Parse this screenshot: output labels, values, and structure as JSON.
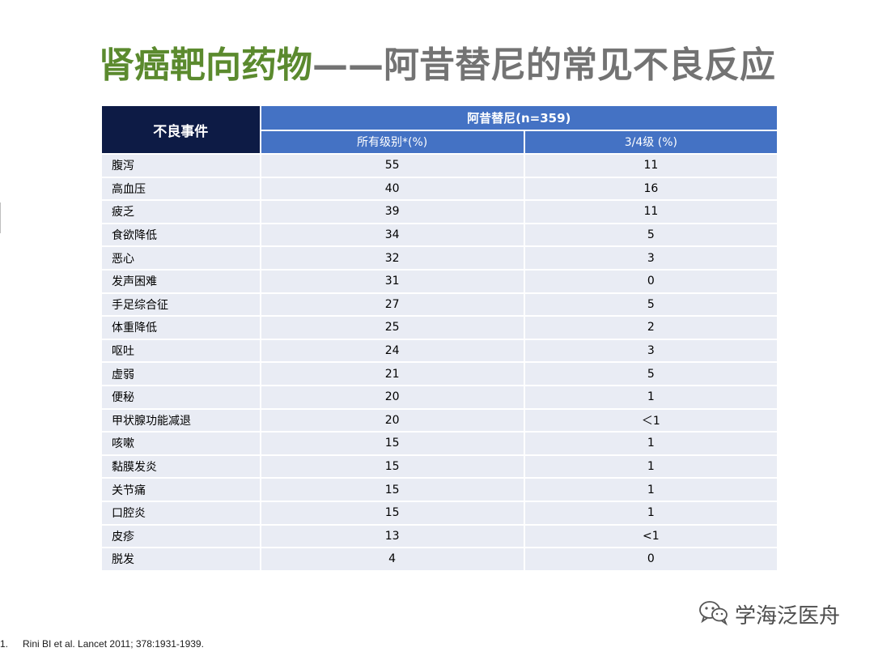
{
  "title": {
    "part1": "肾癌靶向药物",
    "part2": "——阿昔替尼的常见不良反应"
  },
  "table": {
    "header_ae": "不良事件",
    "header_drug": "阿昔替尼(n=359)",
    "header_all": "所有级别*(%)",
    "header_g34": "3/4级 (%)",
    "rows": [
      {
        "event": "腹泻",
        "all": "55",
        "g34": "11"
      },
      {
        "event": "高血压",
        "all": "40",
        "g34": "16"
      },
      {
        "event": "疲乏",
        "all": "39",
        "g34": "11"
      },
      {
        "event": "食欲降低",
        "all": "34",
        "g34": "5"
      },
      {
        "event": "恶心",
        "all": "32",
        "g34": "3"
      },
      {
        "event": "发声困难",
        "all": "31",
        "g34": "0"
      },
      {
        "event": "手足综合征",
        "all": "27",
        "g34": "5"
      },
      {
        "event": "体重降低",
        "all": "25",
        "g34": "2"
      },
      {
        "event": "呕吐",
        "all": "24",
        "g34": "3"
      },
      {
        "event": "虚弱",
        "all": "21",
        "g34": "5"
      },
      {
        "event": "便秘",
        "all": "20",
        "g34": "1"
      },
      {
        "event": "甲状腺功能减退",
        "all": "20",
        "g34": "＜1"
      },
      {
        "event": "咳嗽",
        "all": "15",
        "g34": "1"
      },
      {
        "event": "黏膜发炎",
        "all": "15",
        "g34": "1"
      },
      {
        "event": "关节痛",
        "all": "15",
        "g34": "1"
      },
      {
        "event": "口腔炎",
        "all": "15",
        "g34": "1"
      },
      {
        "event": "皮疹",
        "all": "13",
        "g34": "<1"
      },
      {
        "event": "脱发",
        "all": "4",
        "g34": "0"
      }
    ]
  },
  "footnote": {
    "number": "1.",
    "text": "Rini BI et al. Lancet 2011; 378:1931-1939."
  },
  "watermark": {
    "icon": "wechat-icon",
    "text": "学海泛医舟"
  }
}
